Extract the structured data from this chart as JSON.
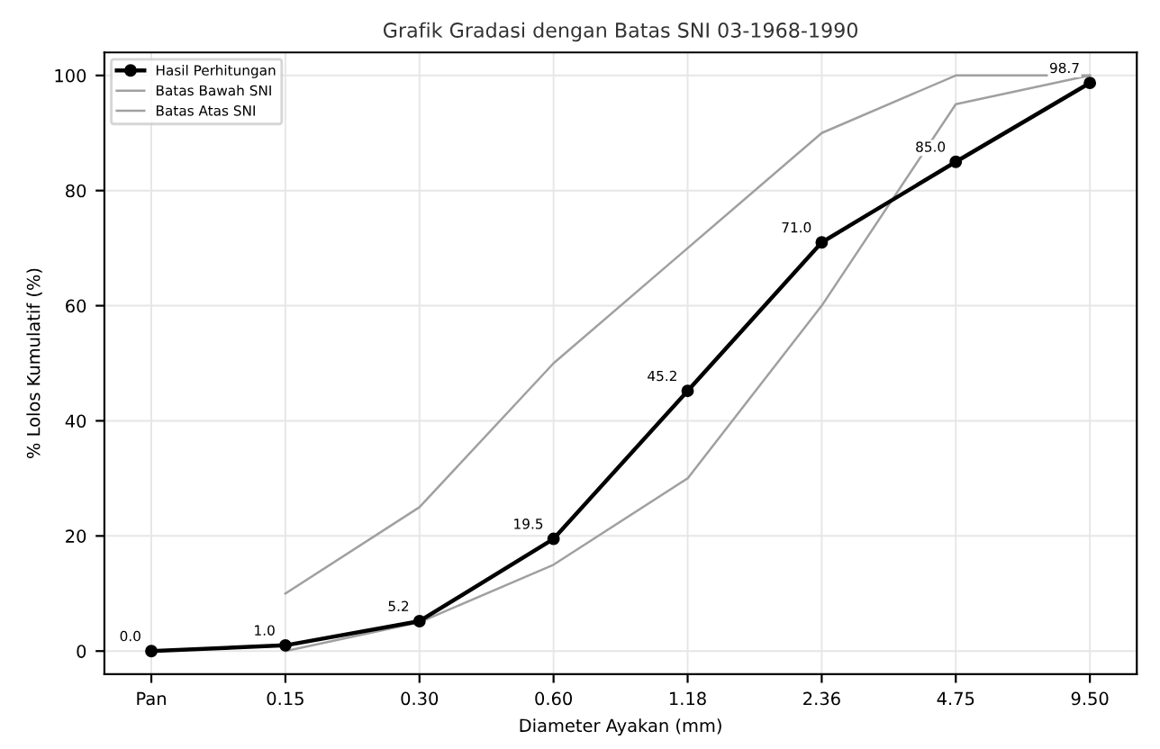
{
  "chart_data": {
    "type": "line",
    "title": "Grafik Gradasi dengan Batas SNI 03-1968-1990",
    "xlabel": "Diameter Ayakan (mm)",
    "ylabel": "% Lolos Kumulatif (%)",
    "categories": [
      "Pan",
      "0.15",
      "0.30",
      "0.60",
      "1.18",
      "2.36",
      "4.75",
      "9.50"
    ],
    "series": [
      {
        "name": "Hasil Perhitungan",
        "color": "#000000",
        "values": [
          0.0,
          1.0,
          5.2,
          19.5,
          45.2,
          71.0,
          85.0,
          98.7
        ],
        "marker": "circle",
        "value_labels": [
          "0.0",
          "1.0",
          "5.2",
          "19.5",
          "45.2",
          "71.0",
          "85.0",
          "98.7"
        ]
      },
      {
        "name": "Batas Bawah SNI",
        "color": "#a0a0a0",
        "values": [
          null,
          0,
          5,
          15,
          30,
          60,
          95,
          100
        ],
        "marker": "none"
      },
      {
        "name": "Batas Atas SNI",
        "color": "#a0a0a0",
        "values": [
          null,
          10,
          25,
          50,
          70,
          90,
          100,
          100
        ],
        "marker": "none"
      }
    ],
    "ylim": [
      -4,
      104
    ],
    "yticks": [
      0,
      20,
      40,
      60,
      80,
      100
    ],
    "grid": true,
    "legend": "top left",
    "line_style": "solid"
  }
}
